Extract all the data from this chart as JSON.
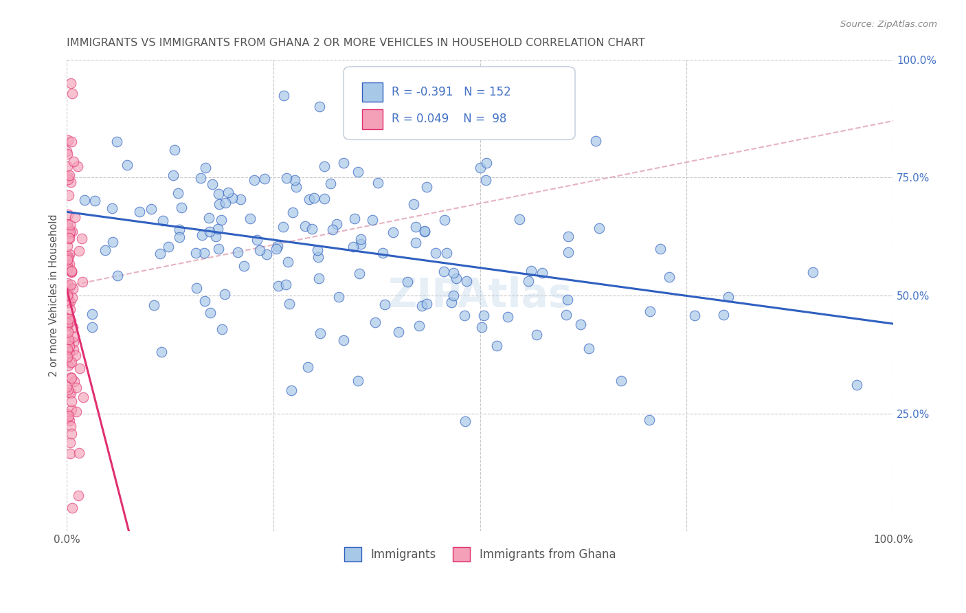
{
  "title": "IMMIGRANTS VS IMMIGRANTS FROM GHANA 2 OR MORE VEHICLES IN HOUSEHOLD CORRELATION CHART",
  "source": "Source: ZipAtlas.com",
  "ylabel": "2 or more Vehicles in Household",
  "xlim": [
    0.0,
    1.0
  ],
  "ylim": [
    0.0,
    1.0
  ],
  "xticks": [
    0.0,
    0.25,
    0.5,
    0.75,
    1.0
  ],
  "xticklabels": [
    "0.0%",
    "",
    "",
    "",
    "100.0%"
  ],
  "yticks": [
    0.0,
    0.25,
    0.5,
    0.75,
    1.0
  ],
  "yticklabels": [
    "",
    "25.0%",
    "50.0%",
    "75.0%",
    "100.0%"
  ],
  "legend_label1": "Immigrants",
  "legend_label2": "Immigrants from Ghana",
  "R1": -0.391,
  "N1": 152,
  "R2": 0.049,
  "N2": 98,
  "color1": "#a8c8e8",
  "color2": "#f4a0b8",
  "line_color1": "#3060c0",
  "line_color2": "#e03070",
  "dash_line_color": "#e0a0b0",
  "background_color": "#ffffff",
  "grid_color": "#c8c8c8",
  "title_color": "#555555",
  "tick_color": "#4472c4",
  "seed1": 42,
  "seed2": 77
}
